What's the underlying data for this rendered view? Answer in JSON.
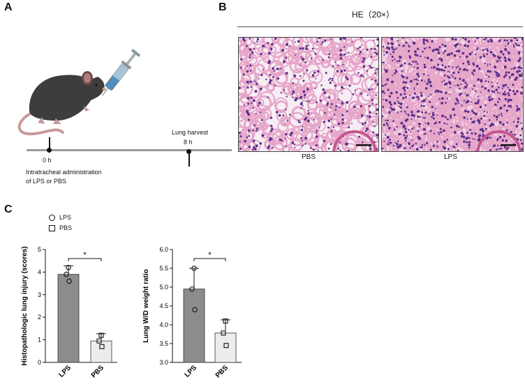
{
  "panels": {
    "a": {
      "letter": "A"
    },
    "b": {
      "letter": "B"
    },
    "c": {
      "letter": "C"
    }
  },
  "panel_a": {
    "time_start": "0 h",
    "time_end": "8 h",
    "harvest_label": "Lung harvest",
    "admin_line1": "Intratracheal administration",
    "admin_line2": "of LPS or PBS"
  },
  "panel_b": {
    "header": "HE（20×）",
    "images": [
      {
        "label": "PBS"
      },
      {
        "label": "LPS"
      }
    ]
  },
  "legend": {
    "items": [
      {
        "marker": "circle",
        "label": "LPS"
      },
      {
        "marker": "square",
        "label": "PBS"
      }
    ]
  },
  "colors": {
    "lps_bar": "#8c8c8c",
    "pbs_bar": "#ececec",
    "tissue_pink": "#e6a6c9",
    "nuclei_purple": "#5a2f8a"
  },
  "chart_data": [
    {
      "type": "bar",
      "categories": [
        "LPS",
        "PBS"
      ],
      "values": [
        3.9,
        0.95
      ],
      "error": [
        0.38,
        0.32
      ],
      "points": [
        [
          4.2,
          3.6,
          3.9
        ],
        [
          1.2,
          0.7,
          0.95
        ]
      ],
      "ylabel": "Histopathologic  lung injury (scores)",
      "ylim": [
        0,
        5
      ],
      "yticks": [
        "0",
        "1",
        "2",
        "3",
        "4",
        "5"
      ],
      "significance": "*"
    },
    {
      "type": "bar",
      "categories": [
        "LPS",
        "PBS"
      ],
      "values": [
        4.95,
        3.78
      ],
      "error": [
        0.55,
        0.35
      ],
      "points": [
        [
          5.5,
          4.4,
          4.95
        ],
        [
          4.1,
          3.45,
          3.78
        ]
      ],
      "ylabel": "Lung W/D weight ratio",
      "ylim": [
        3.0,
        6.0
      ],
      "yticks": [
        "3.0",
        "3.5",
        "4.0",
        "4.5",
        "5.0",
        "5.5",
        "6.0"
      ],
      "significance": "*"
    }
  ]
}
